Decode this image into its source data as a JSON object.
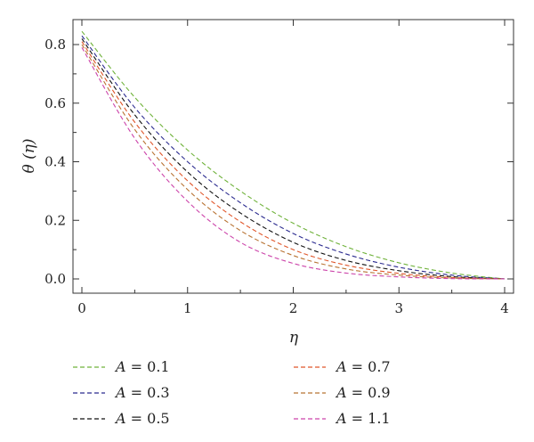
{
  "chart_data": {
    "type": "line",
    "xlabel": "η",
    "ylabel": "θ (η)",
    "xlim": [
      0,
      4
    ],
    "ylim": [
      -0.05,
      0.88
    ],
    "xticks": [
      "0",
      "1",
      "2",
      "3",
      "4"
    ],
    "yticks": [
      "0.0",
      "0.2",
      "0.4",
      "0.6",
      "0.8"
    ],
    "grid": false,
    "legend_position": "bottom",
    "x": [
      0,
      0.5,
      1,
      1.5,
      2,
      2.5,
      3,
      3.5,
      4
    ],
    "series": [
      {
        "name": "A = 0.1",
        "param": "A",
        "eq": " = ",
        "value": "0.1",
        "color": "#6fb23a",
        "values": [
          0.845,
          0.62,
          0.44,
          0.3,
          0.19,
          0.11,
          0.055,
          0.02,
          0.0
        ]
      },
      {
        "name": "A = 0.3",
        "param": "A",
        "eq": " = ",
        "value": "0.3",
        "color": "#2b2b8f",
        "values": [
          0.83,
          0.585,
          0.4,
          0.26,
          0.155,
          0.085,
          0.04,
          0.013,
          0.0
        ]
      },
      {
        "name": "A = 0.5",
        "param": "A",
        "eq": " = ",
        "value": "0.5",
        "color": "#111111",
        "values": [
          0.82,
          0.56,
          0.365,
          0.225,
          0.125,
          0.063,
          0.028,
          0.008,
          0.0
        ]
      },
      {
        "name": "A = 0.7",
        "param": "A",
        "eq": " = ",
        "value": "0.7",
        "color": "#e0562a",
        "values": [
          0.81,
          0.535,
          0.335,
          0.195,
          0.1,
          0.047,
          0.019,
          0.005,
          0.0
        ]
      },
      {
        "name": "A = 0.9",
        "param": "A",
        "eq": " = ",
        "value": "0.9",
        "color": "#b87333",
        "values": [
          0.8,
          0.51,
          0.305,
          0.165,
          0.08,
          0.034,
          0.013,
          0.003,
          0.0
        ]
      },
      {
        "name": "A = 1.1",
        "param": "A",
        "eq": " = ",
        "value": "1.1",
        "color": "#cc44aa",
        "values": [
          0.79,
          0.48,
          0.265,
          0.125,
          0.053,
          0.02,
          0.007,
          0.001,
          0.0
        ]
      }
    ]
  }
}
